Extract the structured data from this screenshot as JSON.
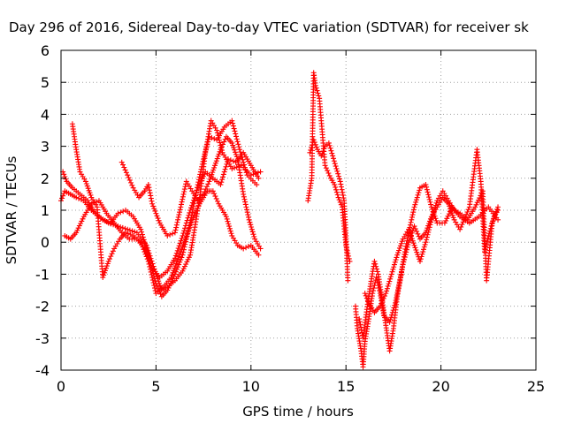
{
  "chart_data": {
    "type": "scatter",
    "title": "Day 296 of 2016, Sidereal Day-to-day VTEC variation (SDTVAR) for receiver sk",
    "xlabel": "GPS time / hours",
    "ylabel": "SDTVAR / TECUs",
    "xlim": [
      0,
      25
    ],
    "ylim": [
      -4,
      6
    ],
    "xticks": [
      "0",
      "5",
      "10",
      "15",
      "20",
      "25"
    ],
    "yticks": [
      "-4",
      "-3",
      "-2",
      "-1",
      "0",
      "1",
      "2",
      "3",
      "4",
      "5",
      "6"
    ],
    "grid": true,
    "marker": "plus",
    "color": "#ff0000",
    "series": [
      {
        "name": "SDTVAR",
        "tracks": [
          [
            [
              0.0,
              1.3
            ],
            [
              0.2,
              1.6
            ],
            [
              0.5,
              1.5
            ],
            [
              0.8,
              1.4
            ],
            [
              1.2,
              1.3
            ],
            [
              1.6,
              1.0
            ],
            [
              2.0,
              0.8
            ],
            [
              2.5,
              0.6
            ],
            [
              3.0,
              0.5
            ],
            [
              3.5,
              0.4
            ],
            [
              4.0,
              0.3
            ],
            [
              4.5,
              -0.1
            ],
            [
              5.0,
              -1.0
            ],
            [
              5.3,
              -1.5
            ],
            [
              5.6,
              -1.4
            ],
            [
              6.0,
              -1.2
            ],
            [
              6.4,
              -0.9
            ],
            [
              6.8,
              -0.4
            ],
            [
              7.0,
              0.3
            ],
            [
              7.3,
              1.4
            ],
            [
              7.6,
              2.8
            ],
            [
              7.9,
              3.8
            ],
            [
              8.2,
              3.5
            ],
            [
              8.5,
              2.8
            ],
            [
              9.0,
              2.3
            ],
            [
              9.5,
              2.4
            ],
            [
              10.0,
              2.1
            ],
            [
              10.5,
              2.2
            ]
          ],
          [
            [
              0.1,
              2.2
            ],
            [
              0.3,
              1.9
            ],
            [
              0.6,
              1.7
            ],
            [
              1.0,
              1.5
            ],
            [
              1.4,
              1.3
            ],
            [
              1.8,
              0.9
            ],
            [
              2.2,
              0.7
            ],
            [
              2.6,
              0.6
            ],
            [
              3.0,
              0.9
            ],
            [
              3.4,
              1.0
            ],
            [
              3.8,
              0.8
            ],
            [
              4.2,
              0.4
            ],
            [
              4.6,
              -0.4
            ],
            [
              5.0,
              -1.3
            ],
            [
              5.3,
              -1.7
            ],
            [
              5.6,
              -1.5
            ],
            [
              6.0,
              -1.0
            ],
            [
              6.4,
              -0.4
            ],
            [
              6.8,
              0.6
            ],
            [
              7.2,
              1.8
            ],
            [
              7.5,
              2.6
            ],
            [
              7.8,
              3.3
            ],
            [
              8.2,
              3.2
            ],
            [
              8.6,
              3.6
            ],
            [
              9.0,
              3.8
            ],
            [
              9.4,
              2.9
            ],
            [
              9.8,
              2.1
            ],
            [
              10.3,
              1.8
            ]
          ],
          [
            [
              0.2,
              0.2
            ],
            [
              0.5,
              0.1
            ],
            [
              0.8,
              0.3
            ],
            [
              1.2,
              0.8
            ],
            [
              1.6,
              1.2
            ],
            [
              2.0,
              1.3
            ],
            [
              2.4,
              0.9
            ],
            [
              2.8,
              0.6
            ],
            [
              3.2,
              0.3
            ],
            [
              3.6,
              0.1
            ],
            [
              4.0,
              0.1
            ],
            [
              4.4,
              -0.2
            ],
            [
              4.8,
              -0.8
            ],
            [
              5.2,
              -1.1
            ],
            [
              5.6,
              -0.9
            ],
            [
              6.0,
              -0.5
            ],
            [
              6.4,
              0.2
            ],
            [
              6.8,
              1.0
            ],
            [
              7.2,
              1.7
            ],
            [
              7.6,
              2.2
            ],
            [
              8.0,
              2.0
            ],
            [
              8.4,
              1.8
            ],
            [
              8.8,
              2.6
            ],
            [
              9.2,
              2.5
            ],
            [
              9.6,
              2.8
            ],
            [
              10.0,
              2.4
            ],
            [
              10.4,
              2.0
            ]
          ],
          [
            [
              0.6,
              3.7
            ],
            [
              0.8,
              2.9
            ],
            [
              1.0,
              2.2
            ],
            [
              1.3,
              1.9
            ],
            [
              1.6,
              1.4
            ],
            [
              1.9,
              1.1
            ],
            [
              2.2,
              -1.1
            ],
            [
              2.5,
              -0.6
            ],
            [
              2.8,
              -0.2
            ],
            [
              3.1,
              0.1
            ],
            [
              3.4,
              0.3
            ],
            [
              3.8,
              0.2
            ],
            [
              4.2,
              0.0
            ],
            [
              4.6,
              -0.6
            ],
            [
              5.0,
              -1.6
            ],
            [
              5.4,
              -1.4
            ],
            [
              5.8,
              -1.1
            ],
            [
              6.1,
              -0.6
            ],
            [
              6.5,
              0.0
            ],
            [
              6.9,
              0.7
            ],
            [
              7.3,
              1.2
            ],
            [
              7.7,
              1.6
            ],
            [
              8.0,
              1.6
            ],
            [
              8.3,
              1.2
            ],
            [
              8.7,
              0.8
            ],
            [
              9.0,
              0.2
            ],
            [
              9.3,
              -0.1
            ],
            [
              9.6,
              -0.2
            ],
            [
              10.0,
              -0.1
            ],
            [
              10.4,
              -0.4
            ]
          ],
          [
            [
              3.2,
              2.5
            ],
            [
              3.5,
              2.1
            ],
            [
              3.8,
              1.7
            ],
            [
              4.1,
              1.4
            ],
            [
              4.4,
              1.6
            ],
            [
              4.6,
              1.8
            ],
            [
              4.8,
              1.2
            ],
            [
              5.2,
              0.6
            ],
            [
              5.6,
              0.2
            ],
            [
              6.0,
              0.3
            ],
            [
              6.3,
              1.1
            ],
            [
              6.6,
              1.9
            ],
            [
              6.9,
              1.6
            ],
            [
              7.2,
              1.3
            ],
            [
              7.5,
              1.5
            ],
            [
              7.8,
              1.9
            ],
            [
              8.1,
              2.4
            ],
            [
              8.4,
              2.9
            ],
            [
              8.7,
              3.3
            ],
            [
              9.0,
              3.1
            ],
            [
              9.3,
              2.6
            ],
            [
              9.6,
              1.5
            ],
            [
              9.9,
              0.7
            ],
            [
              10.2,
              0.1
            ],
            [
              10.5,
              -0.2
            ]
          ],
          [
            [
              13.0,
              1.3
            ],
            [
              13.2,
              2.0
            ],
            [
              13.3,
              5.3
            ],
            [
              13.4,
              4.9
            ],
            [
              13.6,
              4.5
            ],
            [
              13.9,
              2.4
            ],
            [
              14.2,
              2.0
            ],
            [
              14.4,
              1.8
            ],
            [
              14.6,
              1.4
            ],
            [
              14.8,
              1.1
            ],
            [
              15.0,
              -0.1
            ],
            [
              15.2,
              -0.6
            ]
          ],
          [
            [
              13.1,
              2.8
            ],
            [
              13.3,
              3.2
            ],
            [
              13.5,
              2.9
            ],
            [
              13.7,
              2.7
            ],
            [
              13.9,
              3.0
            ],
            [
              14.1,
              3.1
            ],
            [
              14.3,
              2.7
            ],
            [
              14.5,
              2.3
            ],
            [
              14.7,
              1.9
            ],
            [
              14.9,
              1.3
            ],
            [
              15.0,
              0.2
            ],
            [
              15.1,
              -1.2
            ]
          ],
          [
            [
              15.5,
              -2.0
            ],
            [
              15.6,
              -2.7
            ],
            [
              15.8,
              -3.4
            ],
            [
              15.9,
              -3.9
            ],
            [
              16.0,
              -3.1
            ],
            [
              16.2,
              -2.4
            ],
            [
              16.4,
              -1.6
            ],
            [
              16.6,
              -1.1
            ],
            [
              16.8,
              -1.6
            ],
            [
              17.0,
              -2.3
            ],
            [
              17.3,
              -2.5
            ],
            [
              17.6,
              -1.9
            ],
            [
              17.9,
              -1.0
            ],
            [
              18.1,
              -0.3
            ],
            [
              18.3,
              0.3
            ],
            [
              18.6,
              1.1
            ],
            [
              18.9,
              1.7
            ],
            [
              19.2,
              1.8
            ],
            [
              19.5,
              1.1
            ],
            [
              19.8,
              0.6
            ],
            [
              20.2,
              0.6
            ],
            [
              20.6,
              1.1
            ],
            [
              21.0,
              0.8
            ],
            [
              21.5,
              0.6
            ],
            [
              22.0,
              0.8
            ],
            [
              22.5,
              1.1
            ],
            [
              23.0,
              0.7
            ]
          ],
          [
            [
              15.7,
              -2.4
            ],
            [
              15.9,
              -3.0
            ],
            [
              16.1,
              -2.1
            ],
            [
              16.3,
              -1.3
            ],
            [
              16.5,
              -0.6
            ],
            [
              16.7,
              -1.0
            ],
            [
              16.9,
              -1.8
            ],
            [
              17.1,
              -2.6
            ],
            [
              17.3,
              -3.4
            ],
            [
              17.5,
              -2.7
            ],
            [
              17.7,
              -1.7
            ],
            [
              18.0,
              -0.7
            ],
            [
              18.3,
              0.0
            ],
            [
              18.6,
              0.5
            ],
            [
              18.9,
              0.1
            ],
            [
              19.2,
              0.3
            ],
            [
              19.5,
              0.8
            ],
            [
              19.8,
              1.1
            ],
            [
              20.1,
              1.4
            ],
            [
              20.4,
              1.2
            ],
            [
              20.7,
              0.7
            ],
            [
              21.0,
              0.4
            ],
            [
              21.5,
              1.1
            ],
            [
              21.9,
              2.9
            ],
            [
              22.1,
              1.9
            ],
            [
              22.3,
              -0.3
            ],
            [
              22.5,
              0.2
            ],
            [
              22.8,
              0.8
            ],
            [
              23.0,
              1.0
            ]
          ],
          [
            [
              16.0,
              -1.6
            ],
            [
              16.2,
              -1.9
            ],
            [
              16.5,
              -2.2
            ],
            [
              16.8,
              -2.0
            ],
            [
              17.1,
              -1.6
            ],
            [
              17.4,
              -1.0
            ],
            [
              17.7,
              -0.4
            ],
            [
              18.0,
              0.1
            ],
            [
              18.3,
              0.4
            ],
            [
              18.6,
              -0.1
            ],
            [
              18.9,
              -0.6
            ],
            [
              19.2,
              0.0
            ],
            [
              19.5,
              0.7
            ],
            [
              19.8,
              1.3
            ],
            [
              20.1,
              1.6
            ],
            [
              20.4,
              1.3
            ],
            [
              20.7,
              1.0
            ],
            [
              21.0,
              0.9
            ],
            [
              21.4,
              0.7
            ],
            [
              21.8,
              1.1
            ],
            [
              22.2,
              1.6
            ],
            [
              22.4,
              -1.2
            ],
            [
              22.7,
              0.6
            ],
            [
              23.0,
              1.1
            ]
          ]
        ]
      }
    ]
  }
}
